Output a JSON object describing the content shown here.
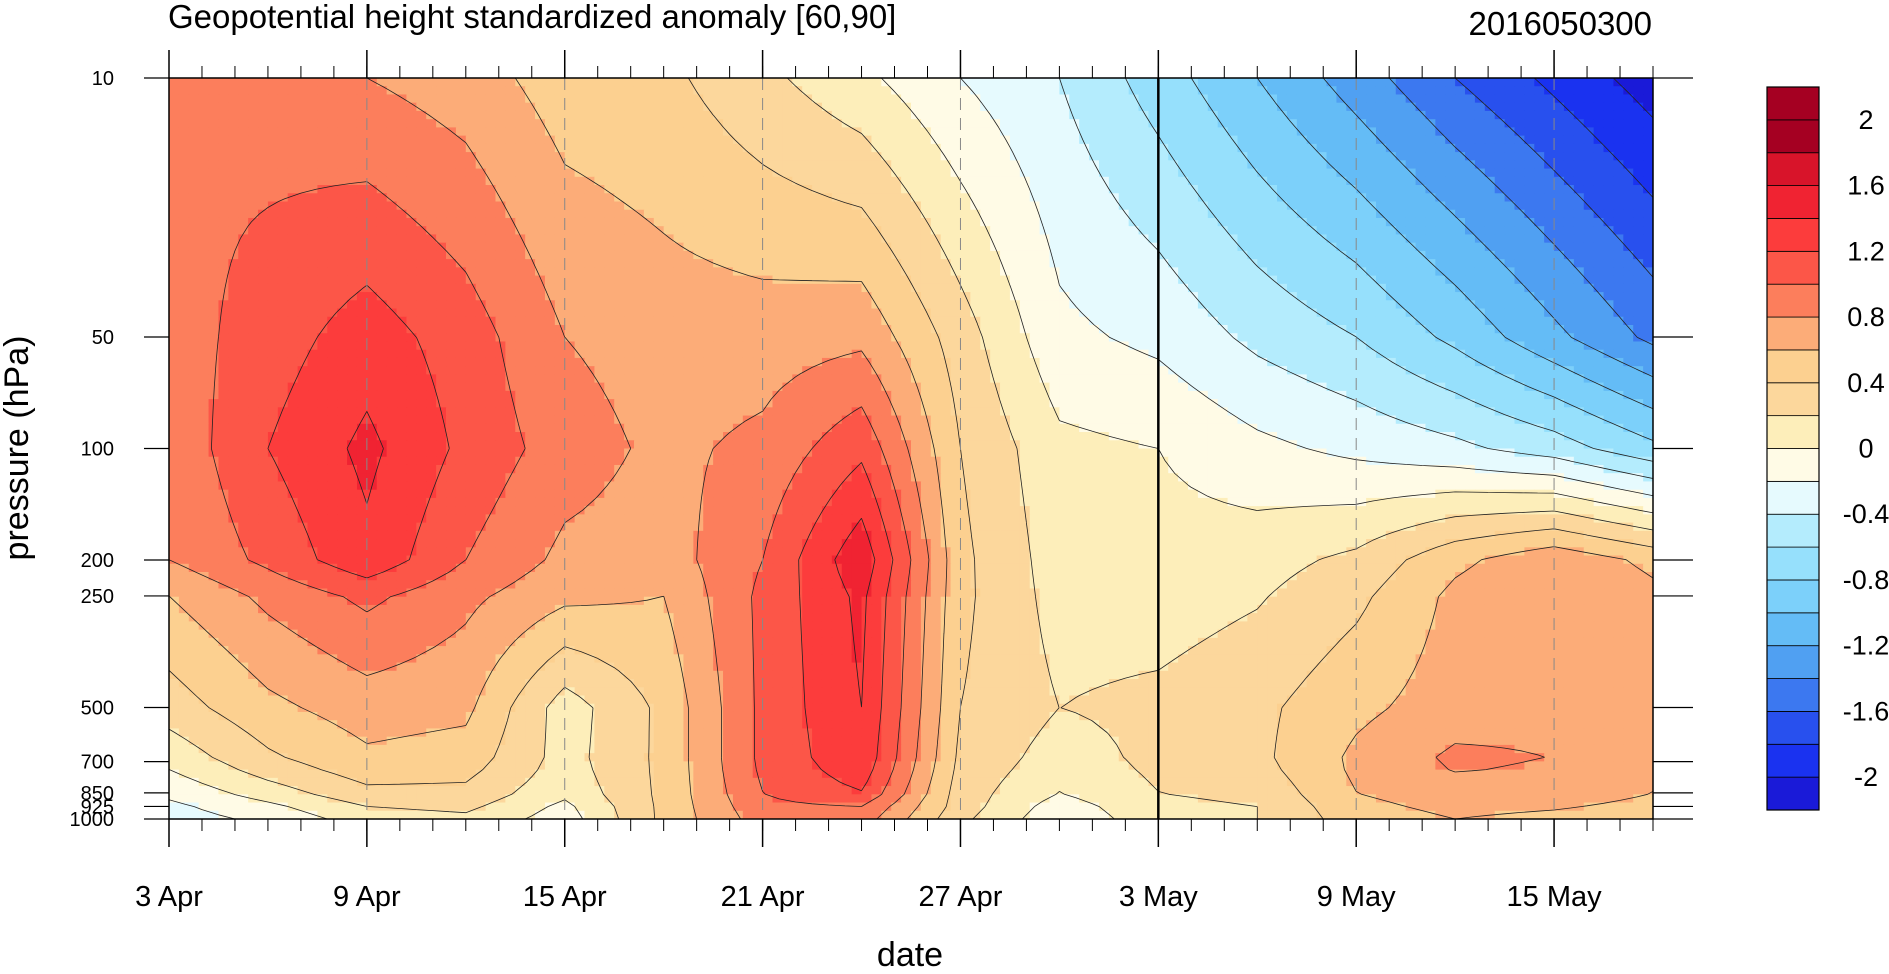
{
  "chart_data": {
    "type": "heatmap",
    "title": "Geopotential height standardized anomaly [60,90]",
    "stamp": "2016050300",
    "xlabel": "date",
    "ylabel": "pressure (hPa)",
    "x_start_date": "2016-04-03",
    "x_ticks": [
      {
        "date": "2016-04-03",
        "label": "3 Apr"
      },
      {
        "date": "2016-04-09",
        "label": "9 Apr"
      },
      {
        "date": "2016-04-15",
        "label": "15 Apr"
      },
      {
        "date": "2016-04-21",
        "label": "21 Apr"
      },
      {
        "date": "2016-04-27",
        "label": "27 Apr"
      },
      {
        "date": "2016-05-03",
        "label": "3 May"
      },
      {
        "date": "2016-05-09",
        "label": "9 May"
      },
      {
        "date": "2016-05-15",
        "label": "15 May"
      }
    ],
    "xlim": [
      "2016-04-03",
      "2016-05-18"
    ],
    "current_date_marker": "2016-05-03",
    "y_scale": "log",
    "ylim": [
      1000,
      10
    ],
    "y_ticks": [
      {
        "value": 10,
        "label": "10"
      },
      {
        "value": 50,
        "label": "50"
      },
      {
        "value": 100,
        "label": "100"
      },
      {
        "value": 200,
        "label": "200"
      },
      {
        "value": 250,
        "label": "250"
      },
      {
        "value": 500,
        "label": "500"
      },
      {
        "value": 700,
        "label": "700"
      },
      {
        "value": 850,
        "label": "850"
      },
      {
        "value": 925,
        "label": "925"
      },
      {
        "value": 1000,
        "label": "1000"
      }
    ],
    "colorbar": {
      "boundaries": [
        -2.2,
        -2.0,
        -1.8,
        -1.6,
        -1.4,
        -1.2,
        -1.0,
        -0.8,
        -0.6,
        -0.4,
        -0.2,
        0.0,
        0.2,
        0.4,
        0.6,
        0.8,
        1.0,
        1.2,
        1.4,
        1.6,
        1.8,
        2.0,
        2.2
      ],
      "colors": [
        "#1a1ad8",
        "#1a32f0",
        "#2850ee",
        "#3c78f0",
        "#50a0f2",
        "#64bcf6",
        "#7cd0fa",
        "#96e0fc",
        "#b4ecfd",
        "#e6fafe",
        "#fffbe6",
        "#fdeeba",
        "#fcd79c",
        "#fcd090",
        "#fcac78",
        "#fc7e5c",
        "#fc5648",
        "#fc3c3c",
        "#f02332",
        "#d8142a",
        "#a50022",
        "#a50022"
      ],
      "labels": [
        {
          "value": 2.0,
          "label": "2"
        },
        {
          "value": 1.6,
          "label": "1.6"
        },
        {
          "value": 1.2,
          "label": "1.2"
        },
        {
          "value": 0.8,
          "label": "0.8"
        },
        {
          "value": 0.4,
          "label": "0.4"
        },
        {
          "value": 0.0,
          "label": "0"
        },
        {
          "value": -0.4,
          "label": "-0.4"
        },
        {
          "value": -0.8,
          "label": "-0.8"
        },
        {
          "value": -1.2,
          "label": "-1.2"
        },
        {
          "value": -1.6,
          "label": "-1.6"
        },
        {
          "value": -2.0,
          "label": "-2"
        }
      ]
    },
    "grid": {
      "days": [
        0,
        3,
        6,
        9,
        12,
        15,
        18,
        21,
        24,
        27,
        30,
        33,
        36,
        39,
        42,
        45
      ],
      "levels": [
        10,
        50,
        100,
        200,
        250,
        500,
        700,
        850,
        925,
        1000
      ],
      "values": [
        [
          1.0,
          0.9,
          0.8,
          0.7,
          0.5,
          0.45,
          0.25,
          0.05,
          -0.2,
          -0.4,
          -0.7,
          -1.0,
          -1.3,
          -1.6,
          -1.85,
          -2.1
        ],
        [
          0.9,
          1.1,
          1.3,
          1.1,
          0.8,
          0.7,
          0.7,
          0.75,
          0.3,
          -0.15,
          -0.25,
          -0.45,
          -0.6,
          -0.85,
          -1.15,
          -1.45
        ],
        [
          0.85,
          1.2,
          1.45,
          1.15,
          0.9,
          0.75,
          0.85,
          1.15,
          0.4,
          0.05,
          0.0,
          -0.15,
          -0.25,
          -0.35,
          -0.5,
          -0.75
        ],
        [
          0.8,
          1.05,
          1.35,
          1.0,
          0.75,
          0.7,
          1.0,
          1.55,
          0.45,
          0.1,
          0.08,
          0.12,
          0.25,
          0.55,
          0.75,
          0.55
        ],
        [
          0.6,
          0.85,
          1.05,
          0.85,
          0.65,
          0.6,
          1.05,
          1.45,
          0.45,
          0.12,
          0.1,
          0.18,
          0.35,
          0.65,
          0.8,
          0.65
        ],
        [
          0.3,
          0.55,
          0.7,
          0.65,
          0.1,
          0.45,
          1.05,
          1.4,
          0.4,
          0.2,
          0.25,
          0.35,
          0.55,
          0.7,
          0.75,
          0.65
        ],
        [
          0.05,
          0.35,
          0.55,
          0.5,
          0.12,
          0.45,
          1.05,
          1.35,
          0.35,
          0.1,
          0.25,
          0.35,
          0.65,
          0.85,
          0.8,
          0.65
        ],
        [
          -0.15,
          0.1,
          0.35,
          0.35,
          0.05,
          0.45,
          1.0,
          1.2,
          0.3,
          0.0,
          0.2,
          0.25,
          0.6,
          0.7,
          0.7,
          0.6
        ],
        [
          -0.25,
          -0.05,
          0.2,
          0.25,
          -0.05,
          0.45,
          0.95,
          1.0,
          0.3,
          -0.1,
          0.15,
          0.2,
          0.55,
          0.65,
          0.62,
          0.55
        ],
        [
          -0.3,
          -0.15,
          0.1,
          0.15,
          -0.1,
          0.45,
          0.9,
          0.9,
          0.25,
          -0.15,
          0.12,
          0.2,
          0.5,
          0.6,
          0.55,
          0.5
        ]
      ]
    }
  }
}
